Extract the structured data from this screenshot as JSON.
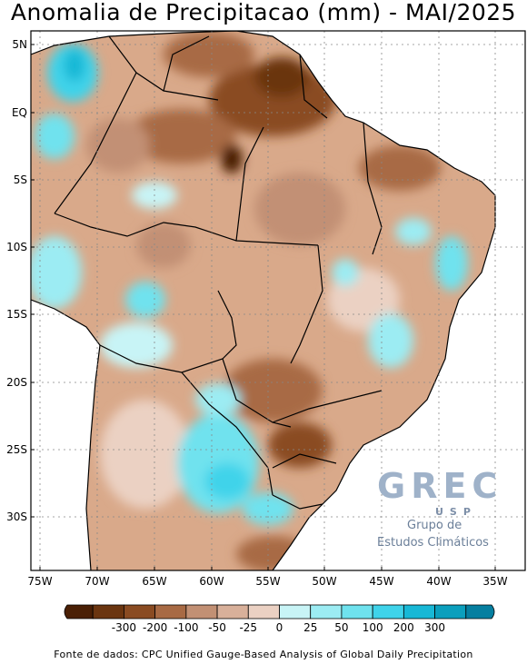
{
  "title": "Anomalia de Precipitacao (mm) - MAI/2025",
  "map": {
    "lat_labels": [
      "5N",
      "EQ",
      "5S",
      "10S",
      "15S",
      "20S",
      "25S",
      "30S"
    ],
    "lon_labels": [
      "75W",
      "70W",
      "65W",
      "60W",
      "55W",
      "50W",
      "45W",
      "40W",
      "35W"
    ],
    "land_color": "#d9a98a",
    "dry_color": "#8a4b22",
    "wet_color": "#3fd3ea"
  },
  "legend": {
    "colors": [
      "#4a1f05",
      "#6b3510",
      "#8a4b22",
      "#a86a44",
      "#c29074",
      "#d8b09a",
      "#ebd1c3",
      "#c8f4f6",
      "#9cecf3",
      "#6fe2ee",
      "#3fd3ea",
      "#18b8d6",
      "#0b9fbd",
      "#067fa0"
    ],
    "labels": [
      "-300",
      "-200",
      "-100",
      "-50",
      "-25",
      "0",
      "25",
      "50",
      "100",
      "200",
      "300"
    ]
  },
  "logo": {
    "word": "GREC",
    "sub": "USP",
    "line1": "Grupo de",
    "line2": "Estudos Climáticos"
  },
  "source": "Fonte de dados: CPC Unified Gauge-Based Analysis of Global Daily Precipitation"
}
